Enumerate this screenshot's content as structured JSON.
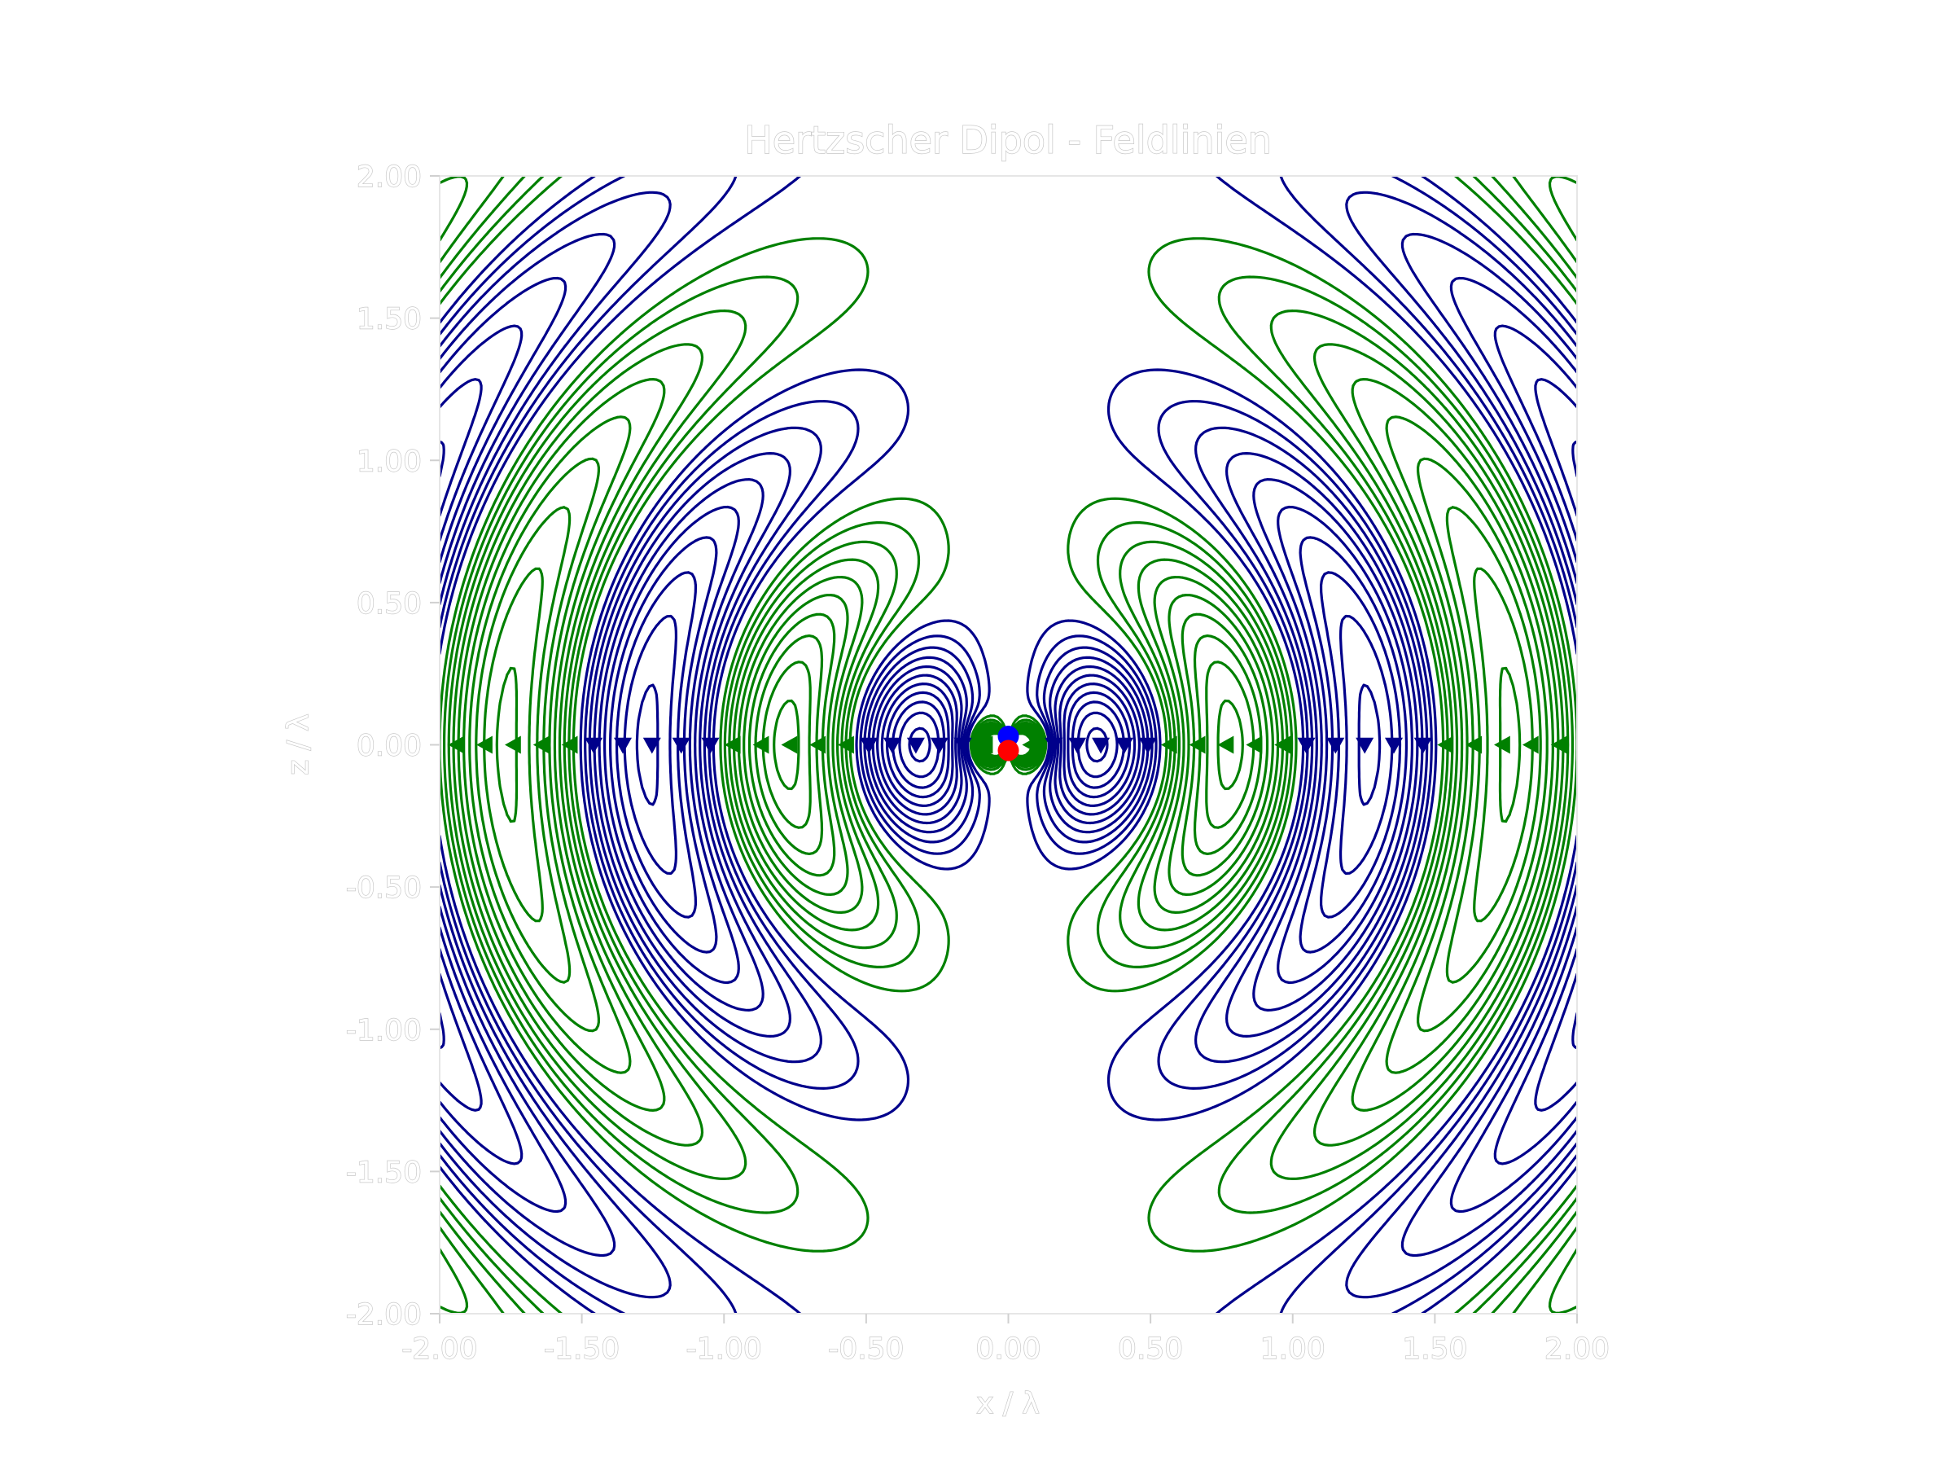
{
  "chart_data": {
    "type": "contour",
    "title": "Hertzscher Dipol - Feldlinien",
    "xlabel": "x / λ",
    "ylabel": "z / λ",
    "xlim": [
      -2.0,
      2.0
    ],
    "ylim": [
      -2.0,
      2.0
    ],
    "xticks": [
      "-2.00",
      "-1.50",
      "-1.00",
      "-0.50",
      "0.00",
      "0.50",
      "1.00",
      "1.50",
      "2.00"
    ],
    "yticks": [
      "2.00",
      "1.50",
      "1.00",
      "0.50",
      "0.00",
      "-0.50",
      "-1.00",
      "-1.50",
      "-2.00"
    ],
    "grid": false,
    "series": [
      {
        "color": "#008000",
        "sign": "positive",
        "arrow": "left"
      },
      {
        "color": "#00008b",
        "sign": "negative",
        "arrow": "down"
      }
    ],
    "dipole": {
      "upper_charge_color": "#0000ff",
      "lower_charge_color": "#ff0000",
      "x": 0.0,
      "z": [
        0.03,
        -0.02
      ]
    }
  }
}
